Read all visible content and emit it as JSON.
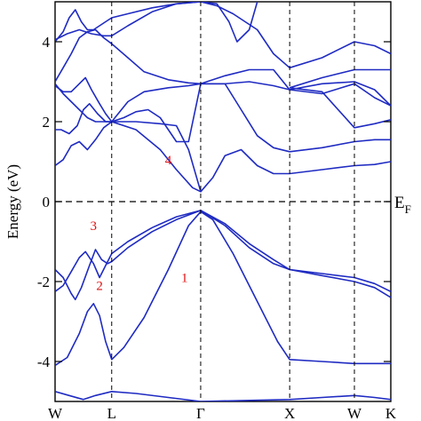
{
  "chart_data": {
    "type": "line",
    "title": "",
    "ylabel": "Energy (eV)",
    "xlabel": "",
    "ylim": [
      -5,
      5
    ],
    "yticks": [
      4,
      2,
      0,
      -2,
      -4
    ],
    "ytick_labels": [
      "4",
      "2",
      "0",
      "-2",
      "-4"
    ],
    "grid": false,
    "line_color": "#1f2bc2",
    "annotation_color": "#e01010",
    "kpoints": [
      {
        "label": "W",
        "x": 0
      },
      {
        "label": "L",
        "x": 0.14
      },
      {
        "label": "Γ",
        "x": 0.36
      },
      {
        "label": "X",
        "x": 0.58
      },
      {
        "label": "W",
        "x": 0.74
      },
      {
        "label": "K",
        "x": 0.83
      }
    ],
    "fermi_label": "E",
    "fermi_sub": "F",
    "annotations": [
      {
        "text": "1",
        "x": 0.32,
        "y": -1.9
      },
      {
        "text": "2",
        "x": 0.11,
        "y": -2.1
      },
      {
        "text": "3",
        "x": 0.095,
        "y": -0.6
      },
      {
        "text": "4",
        "x": 0.28,
        "y": 1.05
      }
    ],
    "series": [
      {
        "values": [
          [
            0,
            -4.75
          ],
          [
            0.035,
            -4.85
          ],
          [
            0.07,
            -4.95
          ],
          [
            0.1,
            -4.85
          ],
          [
            0.14,
            -4.75
          ],
          [
            0.2,
            -4.8
          ],
          [
            0.28,
            -4.9
          ],
          [
            0.36,
            -5.0
          ],
          [
            0.58,
            -4.95
          ],
          [
            0.66,
            -4.9
          ],
          [
            0.74,
            -4.85
          ],
          [
            0.79,
            -4.9
          ],
          [
            0.83,
            -4.95
          ]
        ]
      },
      {
        "values": [
          [
            0,
            -4.1
          ],
          [
            0.03,
            -3.9
          ],
          [
            0.06,
            -3.3
          ],
          [
            0.08,
            -2.75
          ],
          [
            0.095,
            -2.55
          ],
          [
            0.11,
            -2.85
          ],
          [
            0.125,
            -3.5
          ],
          [
            0.14,
            -3.95
          ],
          [
            0.17,
            -3.65
          ],
          [
            0.22,
            -2.9
          ],
          [
            0.28,
            -1.7
          ],
          [
            0.33,
            -0.6
          ],
          [
            0.36,
            -0.25
          ],
          [
            0.39,
            -0.45
          ],
          [
            0.44,
            -1.3
          ],
          [
            0.5,
            -2.5
          ],
          [
            0.55,
            -3.5
          ],
          [
            0.58,
            -3.95
          ],
          [
            0.66,
            -4.0
          ],
          [
            0.74,
            -4.05
          ],
          [
            0.79,
            -4.05
          ],
          [
            0.83,
            -4.05
          ]
        ]
      },
      {
        "values": [
          [
            0,
            -1.7
          ],
          [
            0.02,
            -1.9
          ],
          [
            0.04,
            -2.3
          ],
          [
            0.05,
            -2.45
          ],
          [
            0.065,
            -2.15
          ],
          [
            0.085,
            -1.6
          ],
          [
            0.1,
            -1.2
          ],
          [
            0.115,
            -1.45
          ],
          [
            0.13,
            -1.55
          ],
          [
            0.14,
            -1.5
          ],
          [
            0.18,
            -1.15
          ],
          [
            0.24,
            -0.75
          ],
          [
            0.3,
            -0.45
          ],
          [
            0.36,
            -0.22
          ],
          [
            0.42,
            -0.6
          ],
          [
            0.48,
            -1.15
          ],
          [
            0.54,
            -1.55
          ],
          [
            0.58,
            -1.7
          ],
          [
            0.66,
            -1.85
          ],
          [
            0.74,
            -2.0
          ],
          [
            0.79,
            -2.15
          ],
          [
            0.83,
            -2.4
          ]
        ]
      },
      {
        "values": [
          [
            0,
            -2.25
          ],
          [
            0.02,
            -2.1
          ],
          [
            0.04,
            -1.75
          ],
          [
            0.06,
            -1.4
          ],
          [
            0.075,
            -1.25
          ],
          [
            0.095,
            -1.55
          ],
          [
            0.11,
            -1.9
          ],
          [
            0.125,
            -1.6
          ],
          [
            0.14,
            -1.3
          ],
          [
            0.18,
            -1.0
          ],
          [
            0.24,
            -0.65
          ],
          [
            0.3,
            -0.38
          ],
          [
            0.36,
            -0.22
          ],
          [
            0.42,
            -0.55
          ],
          [
            0.48,
            -1.05
          ],
          [
            0.54,
            -1.45
          ],
          [
            0.58,
            -1.7
          ],
          [
            0.66,
            -1.8
          ],
          [
            0.74,
            -1.9
          ],
          [
            0.79,
            -2.05
          ],
          [
            0.83,
            -2.25
          ]
        ]
      },
      {
        "values": [
          [
            0,
            0.9
          ],
          [
            0.02,
            1.05
          ],
          [
            0.04,
            1.4
          ],
          [
            0.06,
            1.5
          ],
          [
            0.08,
            1.3
          ],
          [
            0.1,
            1.55
          ],
          [
            0.12,
            1.85
          ],
          [
            0.14,
            2.0
          ],
          [
            0.2,
            1.8
          ],
          [
            0.26,
            1.3
          ],
          [
            0.3,
            0.8
          ],
          [
            0.34,
            0.35
          ],
          [
            0.36,
            0.25
          ],
          [
            0.39,
            0.6
          ],
          [
            0.42,
            1.15
          ],
          [
            0.46,
            1.3
          ],
          [
            0.5,
            0.9
          ],
          [
            0.54,
            0.7
          ],
          [
            0.58,
            0.7
          ],
          [
            0.66,
            0.8
          ],
          [
            0.74,
            0.9
          ],
          [
            0.79,
            0.93
          ],
          [
            0.83,
            1.0
          ]
        ]
      },
      {
        "values": [
          [
            0,
            1.8
          ],
          [
            0.015,
            1.8
          ],
          [
            0.035,
            1.7
          ],
          [
            0.055,
            1.9
          ],
          [
            0.07,
            2.3
          ],
          [
            0.085,
            2.45
          ],
          [
            0.105,
            2.2
          ],
          [
            0.125,
            2.0
          ],
          [
            0.14,
            2.0
          ],
          [
            0.2,
            2.0
          ],
          [
            0.26,
            1.95
          ],
          [
            0.3,
            1.9
          ],
          [
            0.33,
            1.3
          ],
          [
            0.36,
            0.25
          ]
        ]
      },
      {
        "values": [
          [
            0.36,
            2.95
          ],
          [
            0.42,
            2.95
          ],
          [
            0.46,
            2.3
          ],
          [
            0.5,
            1.65
          ],
          [
            0.54,
            1.35
          ],
          [
            0.58,
            1.25
          ],
          [
            0.66,
            1.35
          ],
          [
            0.74,
            1.5
          ],
          [
            0.79,
            1.55
          ],
          [
            0.83,
            1.55
          ]
        ]
      },
      {
        "values": [
          [
            0,
            2.95
          ],
          [
            0.02,
            2.7
          ],
          [
            0.04,
            2.5
          ],
          [
            0.06,
            2.3
          ],
          [
            0.08,
            2.1
          ],
          [
            0.1,
            2.0
          ],
          [
            0.12,
            2.0
          ],
          [
            0.14,
            2.0
          ],
          [
            0.17,
            2.1
          ],
          [
            0.2,
            2.25
          ],
          [
            0.23,
            2.3
          ],
          [
            0.26,
            2.1
          ],
          [
            0.3,
            1.5
          ],
          [
            0.33,
            1.5
          ],
          [
            0.36,
            2.95
          ],
          [
            0.42,
            2.95
          ],
          [
            0.48,
            3.0
          ],
          [
            0.54,
            2.9
          ],
          [
            0.58,
            2.8
          ],
          [
            0.66,
            2.7
          ],
          [
            0.74,
            2.95
          ],
          [
            0.79,
            2.6
          ],
          [
            0.83,
            2.4
          ]
        ]
      },
      {
        "values": [
          [
            0,
            2.9
          ],
          [
            0.02,
            2.75
          ],
          [
            0.04,
            2.75
          ],
          [
            0.06,
            2.95
          ],
          [
            0.075,
            3.1
          ],
          [
            0.09,
            2.8
          ],
          [
            0.11,
            2.45
          ],
          [
            0.125,
            2.2
          ],
          [
            0.14,
            2.0
          ],
          [
            0.18,
            2.5
          ],
          [
            0.22,
            2.75
          ],
          [
            0.28,
            2.85
          ],
          [
            0.33,
            2.9
          ],
          [
            0.36,
            2.95
          ]
        ]
      },
      {
        "values": [
          [
            0.36,
            2.95
          ],
          [
            0.42,
            3.15
          ],
          [
            0.48,
            3.3
          ],
          [
            0.54,
            3.3
          ],
          [
            0.58,
            2.8
          ],
          [
            0.66,
            2.95
          ],
          [
            0.74,
            3.0
          ],
          [
            0.79,
            2.8
          ],
          [
            0.83,
            2.4
          ]
        ]
      },
      {
        "values": [
          [
            0,
            3.0
          ],
          [
            0.02,
            3.35
          ],
          [
            0.04,
            3.7
          ],
          [
            0.06,
            4.1
          ],
          [
            0.08,
            4.25
          ],
          [
            0.1,
            4.3
          ],
          [
            0.12,
            4.1
          ],
          [
            0.14,
            3.95
          ],
          [
            0.18,
            3.6
          ],
          [
            0.22,
            3.25
          ],
          [
            0.28,
            3.05
          ],
          [
            0.33,
            2.97
          ],
          [
            0.36,
            2.95
          ]
        ]
      },
      {
        "values": [
          [
            0,
            4.05
          ],
          [
            0.03,
            4.2
          ],
          [
            0.06,
            4.3
          ],
          [
            0.09,
            4.2
          ],
          [
            0.12,
            4.15
          ],
          [
            0.14,
            4.15
          ],
          [
            0.18,
            4.4
          ],
          [
            0.24,
            4.75
          ],
          [
            0.3,
            4.95
          ],
          [
            0.36,
            5.0
          ],
          [
            0.4,
            4.9
          ],
          [
            0.44,
            4.7
          ],
          [
            0.5,
            4.3
          ],
          [
            0.54,
            3.7
          ],
          [
            0.58,
            3.35
          ],
          [
            0.66,
            3.6
          ],
          [
            0.74,
            4.0
          ],
          [
            0.79,
            3.9
          ],
          [
            0.83,
            3.7
          ]
        ]
      },
      {
        "values": [
          [
            0,
            4.0
          ],
          [
            0.02,
            4.25
          ],
          [
            0.035,
            4.6
          ],
          [
            0.05,
            4.8
          ],
          [
            0.065,
            4.5
          ],
          [
            0.08,
            4.3
          ],
          [
            0.095,
            4.3
          ],
          [
            0.11,
            4.4
          ],
          [
            0.125,
            4.5
          ],
          [
            0.14,
            4.6
          ],
          [
            0.18,
            4.7
          ],
          [
            0.24,
            4.85
          ],
          [
            0.3,
            4.95
          ],
          [
            0.36,
            5.0
          ],
          [
            0.4,
            4.95
          ],
          [
            0.43,
            4.5
          ],
          [
            0.45,
            4.0
          ],
          [
            0.48,
            4.3
          ],
          [
            0.5,
            5.0
          ]
        ]
      },
      {
        "values": [
          [
            0.58,
            2.85
          ],
          [
            0.66,
            2.75
          ],
          [
            0.74,
            1.85
          ],
          [
            0.79,
            1.95
          ],
          [
            0.83,
            2.05
          ]
        ]
      },
      {
        "values": [
          [
            0.58,
            2.85
          ],
          [
            0.66,
            3.1
          ],
          [
            0.74,
            3.3
          ],
          [
            0.79,
            3.3
          ],
          [
            0.83,
            3.3
          ]
        ]
      }
    ]
  }
}
